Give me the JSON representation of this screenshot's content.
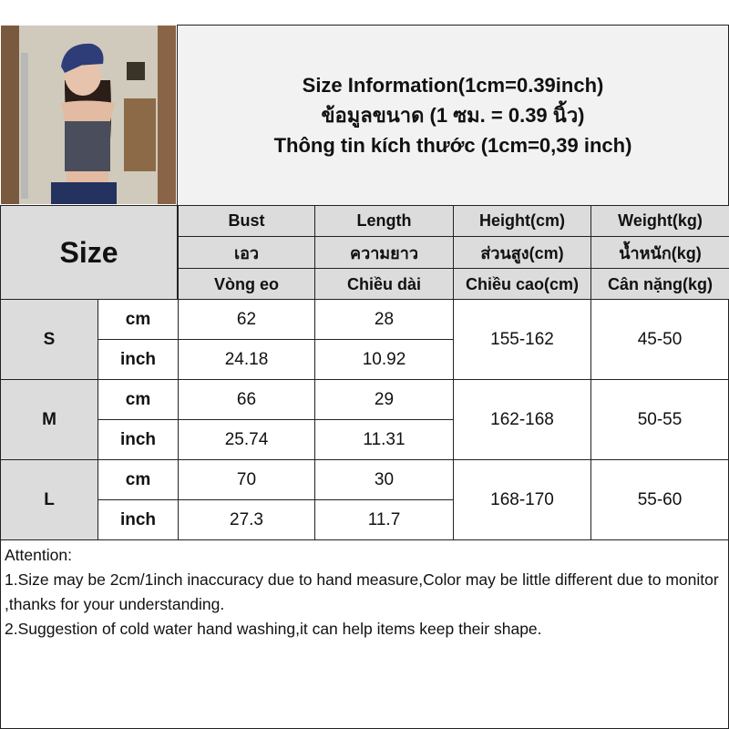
{
  "title": {
    "line1": "Size Information(1cm=0.39inch)",
    "line2": "ข้อมูลขนาด (1 ซม. = 0.39 นิ้ว)",
    "line3": "Thông tin kích thước (1cm=0,39 inch)"
  },
  "size_label": "Size",
  "columns": [
    {
      "en": "Bust",
      "th": "เอว",
      "vi": "Vòng eo"
    },
    {
      "en": "Length",
      "th": "ความยาว",
      "vi": "Chiều dài"
    },
    {
      "en": "Height(cm)",
      "th": "ส่วนสูง(cm)",
      "vi": "Chiều cao(cm)"
    },
    {
      "en": "Weight(kg)",
      "th": "น้ำหนัก(kg)",
      "vi": "Cân nặng(kg)"
    }
  ],
  "rows": [
    {
      "size": "S",
      "cm": {
        "unit": "cm",
        "bust": "62",
        "length": "28"
      },
      "inch": {
        "unit": "inch",
        "bust": "24.18",
        "length": "10.92"
      },
      "height": "155-162",
      "weight": "45-50"
    },
    {
      "size": "M",
      "cm": {
        "unit": "cm",
        "bust": "66",
        "length": "29"
      },
      "inch": {
        "unit": "inch",
        "bust": "25.74",
        "length": "11.31"
      },
      "height": "162-168",
      "weight": "50-55"
    },
    {
      "size": "L",
      "cm": {
        "unit": "cm",
        "bust": "70",
        "length": "30"
      },
      "inch": {
        "unit": "inch",
        "bust": "27.3",
        "length": "11.7"
      },
      "height": "168-170",
      "weight": "55-60"
    }
  ],
  "notes": {
    "heading": "Attention:",
    "n1": "1.Size may be 2cm/1inch inaccuracy due to hand measure,Color may be little different due to monitor ,thanks for your understanding.",
    "n2": "2.Suggestion of cold water hand washing,it can help items keep their shape."
  }
}
